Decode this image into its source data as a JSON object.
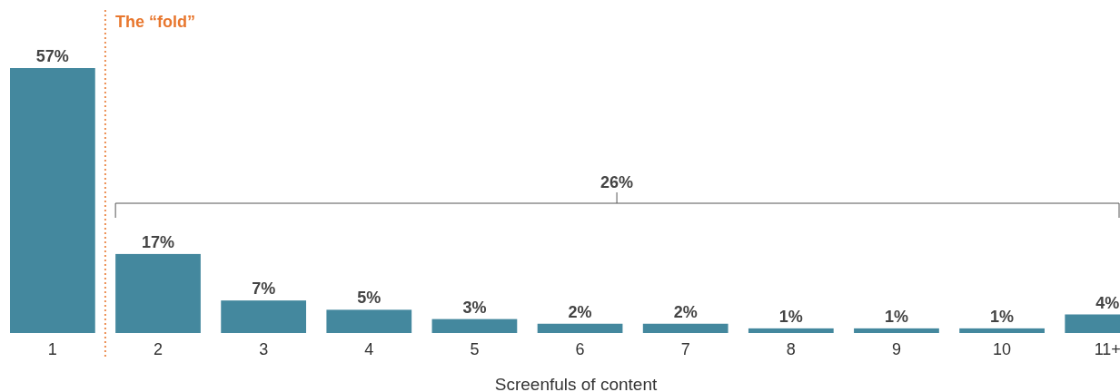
{
  "chart_data": {
    "type": "bar",
    "xlabel": "Screenfuls of content",
    "categories": [
      "1",
      "2",
      "3",
      "4",
      "5",
      "6",
      "7",
      "8",
      "9",
      "10",
      "11+"
    ],
    "values": [
      57,
      17,
      7,
      5,
      3,
      2,
      2,
      1,
      1,
      1,
      4
    ],
    "value_labels": [
      "57%",
      "17%",
      "7%",
      "5%",
      "3%",
      "2%",
      "2%",
      "1%",
      "1%",
      "1%",
      "4%"
    ],
    "color": "#44889e",
    "annotations": [
      "The “fold”",
      "26%"
    ]
  }
}
